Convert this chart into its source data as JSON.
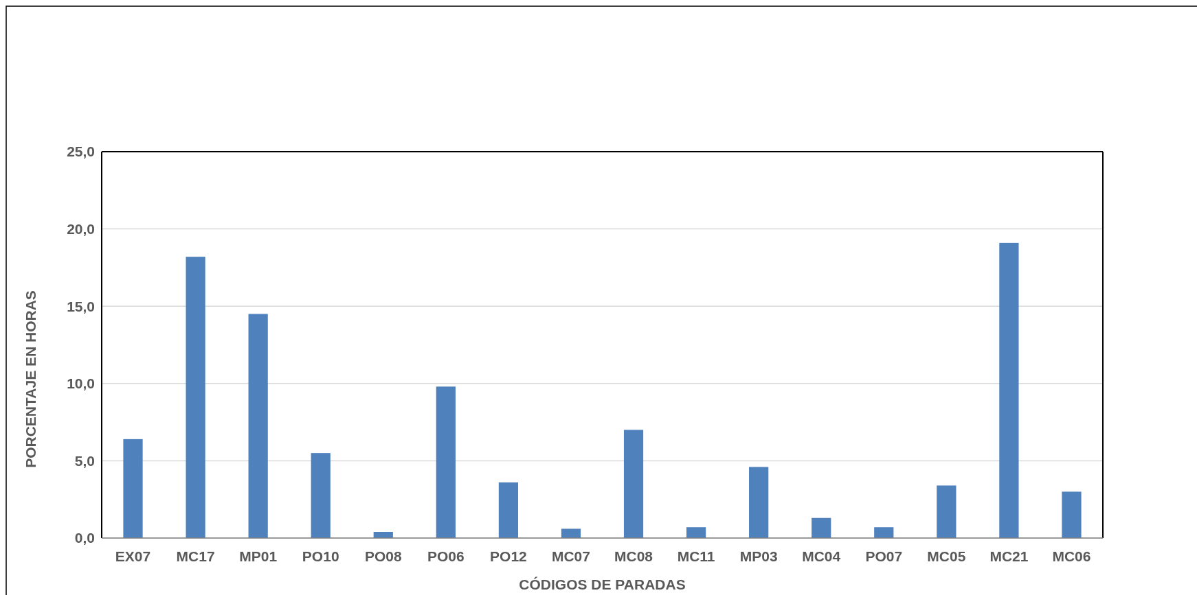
{
  "chart_data": {
    "type": "bar",
    "xlabel": "CÓDIGOS DE PARADAS",
    "ylabel": "PORCENTAJE EN HORAS",
    "categories": [
      "EX07",
      "MC17",
      "MP01",
      "PO10",
      "PO08",
      "PO06",
      "PO12",
      "MC07",
      "MC08",
      "MC11",
      "MP03",
      "MC04",
      "PO07",
      "MC05",
      "MC21",
      "MC06"
    ],
    "values": [
      6.4,
      18.2,
      14.5,
      5.5,
      0.4,
      9.8,
      3.6,
      0.6,
      7.0,
      0.7,
      4.6,
      1.3,
      0.7,
      3.4,
      19.1,
      3.0
    ],
    "color": "#4f81bd",
    "ylim": [
      0,
      25
    ],
    "yticks": [
      {
        "value": 0,
        "label": "0,0"
      },
      {
        "value": 5,
        "label": "5,0"
      },
      {
        "value": 10,
        "label": "10,0"
      },
      {
        "value": 15,
        "label": "15,0"
      },
      {
        "value": 20,
        "label": "20,0"
      },
      {
        "value": 25,
        "label": "25,0"
      }
    ],
    "grid": "y"
  }
}
